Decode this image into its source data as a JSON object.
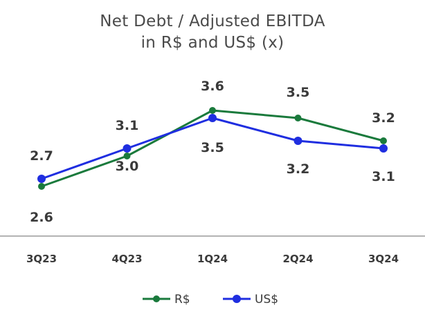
{
  "chart_data": {
    "type": "line",
    "title_lines": [
      "Net Debt / Adjusted EBITDA",
      "in R$ and US$ (x)"
    ],
    "categories": [
      "3Q23",
      "4Q23",
      "1Q24",
      "2Q24",
      "3Q24"
    ],
    "series": [
      {
        "name": "R$",
        "color": "#1a7a3c",
        "values": [
          2.6,
          3.0,
          3.6,
          3.5,
          3.2
        ],
        "labels": [
          "2.6",
          "3.0",
          "3.6",
          "3.5",
          "3.2"
        ]
      },
      {
        "name": "US$",
        "color": "#1f2ee0",
        "values": [
          2.7,
          3.1,
          3.5,
          3.2,
          3.1
        ],
        "labels": [
          "2.7",
          "3.1",
          "3.5",
          "3.2",
          "3.1"
        ]
      }
    ],
    "grid": false,
    "legend_position": "bottom"
  }
}
